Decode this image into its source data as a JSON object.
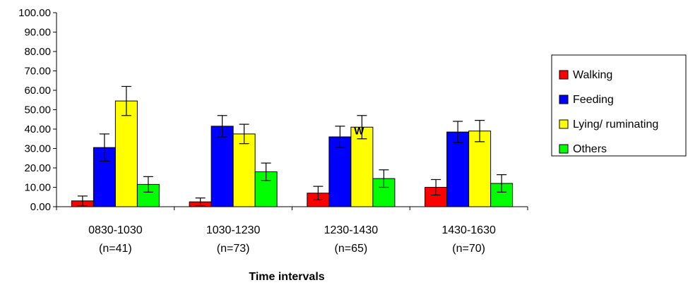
{
  "chart_data": {
    "type": "bar",
    "title": "",
    "xlabel": "Time intervals",
    "ylabel": "",
    "ylim": [
      0,
      100
    ],
    "y_ticks": [
      "0.00",
      "10.00",
      "20.00",
      "30.00",
      "40.00",
      "50.00",
      "60.00",
      "70.00",
      "80.00",
      "90.00",
      "100.00"
    ],
    "categories": [
      {
        "line1": "0830-1030",
        "line2": "(n=41)"
      },
      {
        "line1": "1030-1230",
        "line2": "(n=73)"
      },
      {
        "line1": "1230-1430",
        "line2": "(n=65)"
      },
      {
        "line1": "1430-1630",
        "line2": "(n=70)"
      }
    ],
    "series": [
      {
        "name": "Walking",
        "color": "#ff0000",
        "values": [
          3.0,
          2.5,
          7.0,
          10.0
        ],
        "errors": [
          2.5,
          2.0,
          3.5,
          4.0
        ]
      },
      {
        "name": "Feeding",
        "color": "#0000ff",
        "values": [
          30.5,
          41.5,
          36.0,
          38.5
        ],
        "errors": [
          7.0,
          5.5,
          5.5,
          5.5
        ]
      },
      {
        "name": "Lying/ ruminating",
        "color": "#ffff00",
        "values": [
          54.5,
          37.5,
          41.0,
          39.0
        ],
        "errors": [
          7.5,
          5.0,
          6.0,
          5.5
        ]
      },
      {
        "name": "Others",
        "color": "#00ff00",
        "values": [
          11.5,
          18.0,
          14.5,
          12.0
        ],
        "errors": [
          4.0,
          4.5,
          4.5,
          4.5
        ]
      }
    ],
    "grid": false,
    "legend_position": "right",
    "annotations": [
      "W"
    ]
  }
}
